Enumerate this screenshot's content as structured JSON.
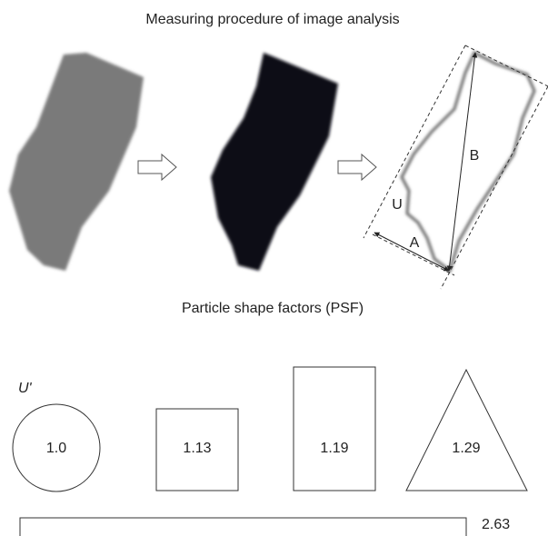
{
  "title": "Measuring procedure of image analysis",
  "outline_labels": {
    "u": "U",
    "b": "B",
    "a": "A"
  },
  "subtitle": "Particle shape factors (PSF)",
  "axis_label": "U'",
  "shapes": [
    {
      "label": "1.0"
    },
    {
      "label": "1.13"
    },
    {
      "label": "1.19"
    },
    {
      "label": "1.29"
    },
    {
      "label": "2.63"
    }
  ]
}
